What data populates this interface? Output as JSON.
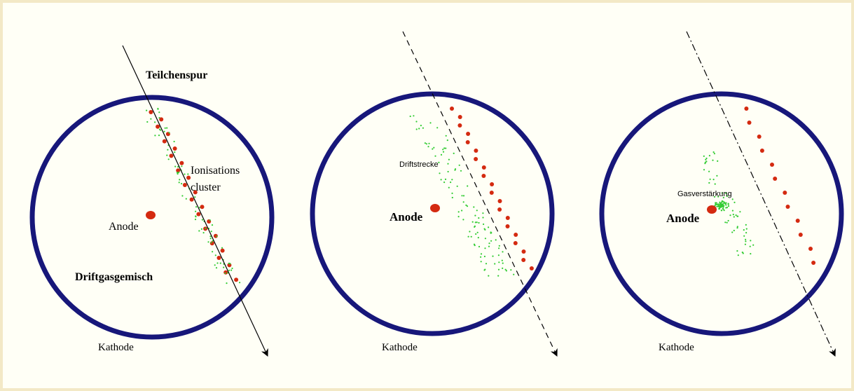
{
  "panels": [
    {
      "track_label": "Teilchenspur",
      "cluster_label_1": "Ionisations",
      "cluster_label_2": "cluster",
      "anode_label": "Anode",
      "gas_label": "Driftgasgemisch",
      "cathode_label": "Kathode"
    },
    {
      "drift_label": "Driftstrecke",
      "anode_label": "Anode",
      "cathode_label": "Kathode"
    },
    {
      "amplification_label": "Gasverstärkung",
      "anode_label": "Anode",
      "cathode_label": "Kathode"
    }
  ]
}
